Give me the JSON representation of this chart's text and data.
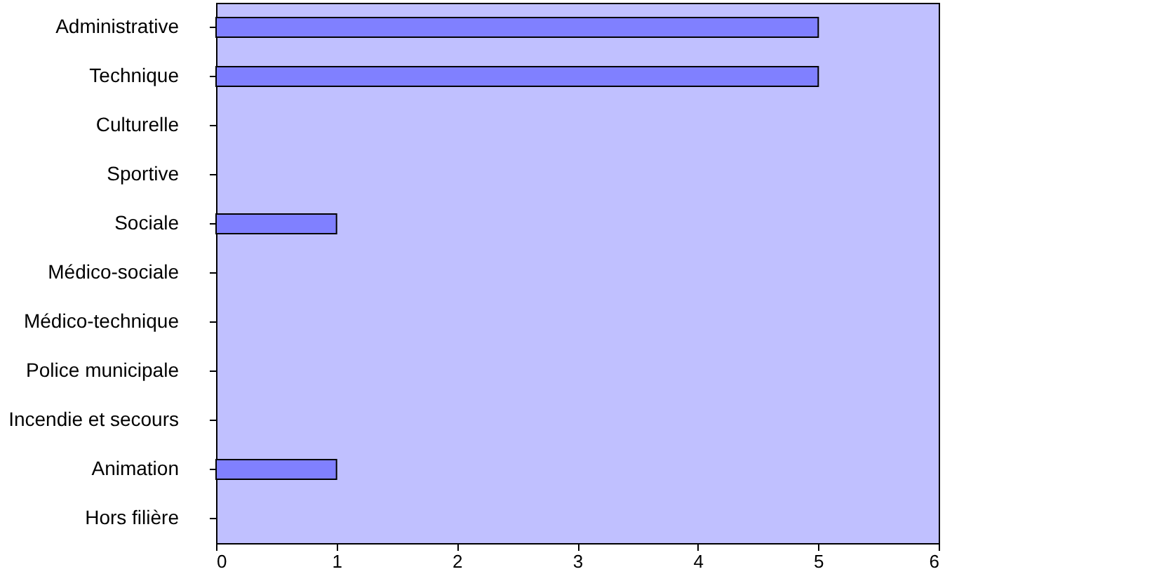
{
  "chart_data": {
    "type": "bar",
    "orientation": "horizontal",
    "categories": [
      "Administrative",
      "Technique",
      "Culturelle",
      "Sportive",
      "Sociale",
      "Médico-sociale",
      "Médico-technique",
      "Police municipale",
      "Incendie et secours",
      "Animation",
      "Hors filière"
    ],
    "values": [
      5,
      5,
      0,
      0,
      1,
      0,
      0,
      0,
      0,
      1,
      0
    ],
    "color": "#8080ff",
    "xlim": [
      0,
      6
    ],
    "xticks": [
      0,
      1,
      2,
      3,
      4,
      5,
      6
    ],
    "grid": false
  }
}
